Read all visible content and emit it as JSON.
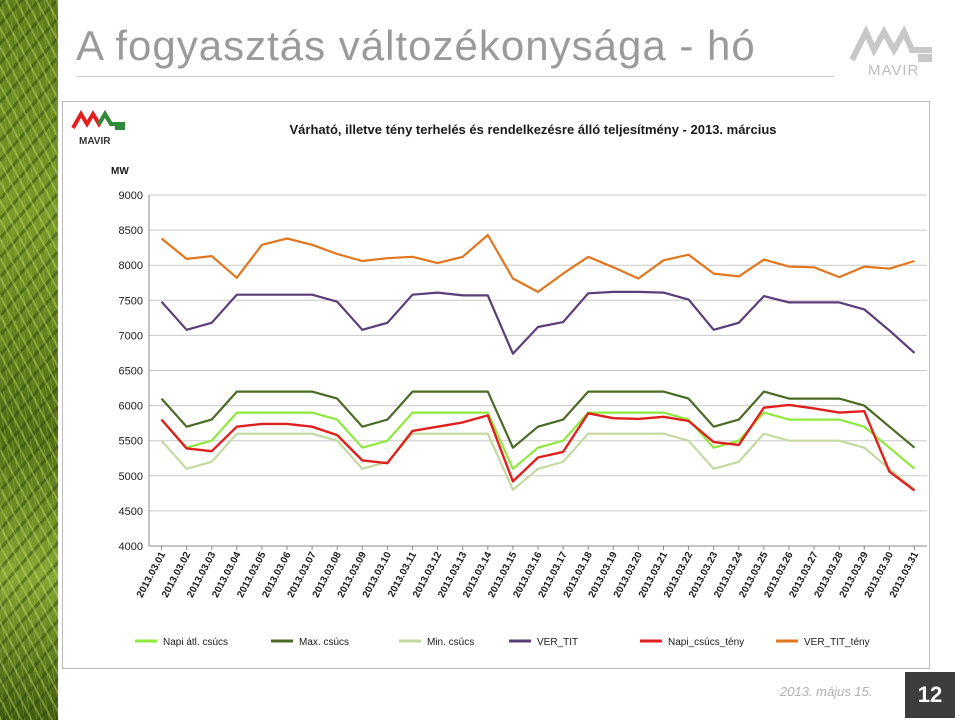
{
  "slide": {
    "title": "A fogyasztás változékonysága - hó",
    "logo_text": "MAVIR",
    "date": "2013. május 15.",
    "page_number": "12"
  },
  "chart_data": {
    "type": "line",
    "title": "Várható, illetve tény terhelés és rendelkezésre álló teljesítmény - 2013. március",
    "logo_text": "MAVIR",
    "ylabel": "MW",
    "xlabel": "",
    "ylim": [
      4000,
      9000
    ],
    "yticks": [
      4000,
      4500,
      5000,
      5500,
      6000,
      6500,
      7000,
      7500,
      8000,
      8500,
      9000
    ],
    "grid": true,
    "legend_position": "bottom",
    "categories": [
      "2013.03.01",
      "2013.03.02",
      "2013.03.03",
      "2013.03.04",
      "2013.03.05",
      "2013.03.06",
      "2013.03.07",
      "2013.03.08",
      "2013.03.09",
      "2013.03.10",
      "2013.03.11",
      "2013.03.12",
      "2013.03.13",
      "2013.03.14",
      "2013.03.15",
      "2013.03.16",
      "2013.03.17",
      "2013.03.18",
      "2013.03.19",
      "2013.03.20",
      "2013.03.21",
      "2013.03.22",
      "2013.03.23",
      "2013.03.24",
      "2013.03.25",
      "2013.03.26",
      "2013.03.27",
      "2013.03.28",
      "2013.03.29",
      "2013.03.30",
      "2013.03.31"
    ],
    "series": [
      {
        "name": "Napi átl. csúcs",
        "color": "#8fe83c",
        "values": [
          5800,
          5400,
          5500,
          5900,
          5900,
          5900,
          5900,
          5800,
          5400,
          5500,
          5900,
          5900,
          5900,
          5900,
          5100,
          5400,
          5500,
          5900,
          5900,
          5900,
          5900,
          5800,
          5400,
          5500,
          5900,
          5800,
          5800,
          5800,
          5700,
          5400,
          5100
        ]
      },
      {
        "name": "Max. csúcs",
        "color": "#4a6b24",
        "values": [
          6100,
          5700,
          5800,
          6200,
          6200,
          6200,
          6200,
          6100,
          5700,
          5800,
          6200,
          6200,
          6200,
          6200,
          5400,
          5700,
          5800,
          6200,
          6200,
          6200,
          6200,
          6100,
          5700,
          5800,
          6200,
          6100,
          6100,
          6100,
          6000,
          5700,
          5400
        ]
      },
      {
        "name": "Min. csúcs",
        "color": "#c3d9a0",
        "values": [
          5500,
          5100,
          5200,
          5600,
          5600,
          5600,
          5600,
          5500,
          5100,
          5200,
          5600,
          5600,
          5600,
          5600,
          4800,
          5100,
          5200,
          5600,
          5600,
          5600,
          5600,
          5500,
          5100,
          5200,
          5600,
          5500,
          5500,
          5500,
          5400,
          5100,
          4800
        ]
      },
      {
        "name": "VER_TIT",
        "color": "#5b3d7a",
        "values": [
          7480,
          7080,
          7180,
          7580,
          7580,
          7580,
          7580,
          7480,
          7080,
          7180,
          7580,
          7610,
          7570,
          7570,
          6740,
          7120,
          7190,
          7600,
          7620,
          7620,
          7610,
          7510,
          7080,
          7180,
          7560,
          7470,
          7470,
          7470,
          7370,
          7070,
          6750
        ]
      },
      {
        "name": "Napi_csúcs_tény",
        "color": "#e0201e",
        "values": [
          5800,
          5390,
          5350,
          5700,
          5740,
          5740,
          5700,
          5580,
          5220,
          5180,
          5640,
          5700,
          5760,
          5860,
          4920,
          5260,
          5340,
          5890,
          5820,
          5810,
          5840,
          5780,
          5480,
          5440,
          5970,
          6010,
          5960,
          5900,
          5920,
          5060,
          4790
        ]
      },
      {
        "name": "VER_TIT_tény",
        "color": "#e2761e",
        "values": [
          8380,
          8090,
          8130,
          7820,
          8290,
          8380,
          8290,
          8160,
          8060,
          8100,
          8120,
          8030,
          8120,
          8430,
          7810,
          7620,
          7880,
          8120,
          7970,
          7810,
          8070,
          8150,
          7880,
          7840,
          8080,
          7980,
          7970,
          7830,
          7980,
          7950,
          8060
        ]
      }
    ]
  }
}
